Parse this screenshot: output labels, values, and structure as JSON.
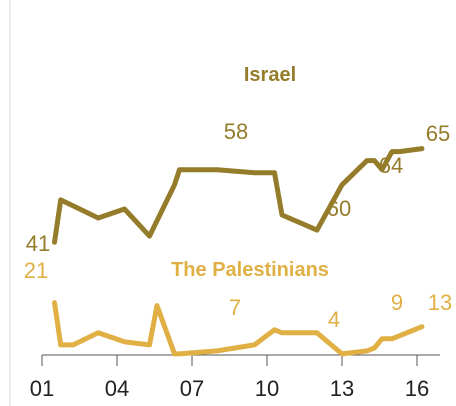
{
  "chart_data": {
    "type": "line",
    "title": "",
    "xlabel": "",
    "ylabel": "",
    "x_tick_labels": [
      "01",
      "04",
      "07",
      "10",
      "13",
      "16"
    ],
    "x_tick_years": [
      2001,
      2004,
      2007,
      2010,
      2013,
      2016
    ],
    "xlim": [
      2001,
      2016.2
    ],
    "ylim": [
      0,
      100
    ],
    "grid": false,
    "legend": "inline labels",
    "series": [
      {
        "name": "Israel",
        "color": "#947c2b",
        "points": [
          {
            "x": 2001.5,
            "y": 41
          },
          {
            "x": 2001.75,
            "y": 55
          },
          {
            "x": 2002.25,
            "y": 53
          },
          {
            "x": 2003.25,
            "y": 49
          },
          {
            "x": 2004.3,
            "y": 52
          },
          {
            "x": 2005.3,
            "y": 43
          },
          {
            "x": 2006.3,
            "y": 60
          },
          {
            "x": 2006.5,
            "y": 65
          },
          {
            "x": 2008.0,
            "y": 65
          },
          {
            "x": 2009.5,
            "y": 64
          },
          {
            "x": 2010.3,
            "y": 64
          },
          {
            "x": 2010.6,
            "y": 50
          },
          {
            "x": 2012.0,
            "y": 45
          },
          {
            "x": 2013.0,
            "y": 60
          },
          {
            "x": 2014.0,
            "y": 68
          },
          {
            "x": 2014.3,
            "y": 68
          },
          {
            "x": 2014.6,
            "y": 65
          },
          {
            "x": 2015.0,
            "y": 71
          },
          {
            "x": 2015.3,
            "y": 71
          },
          {
            "x": 2016.2,
            "y": 72
          }
        ]
      },
      {
        "name": "The Palestinians",
        "color": "#e0b044",
        "points": [
          {
            "x": 2001.5,
            "y": 21
          },
          {
            "x": 2001.75,
            "y": 7
          },
          {
            "x": 2002.25,
            "y": 7
          },
          {
            "x": 2003.25,
            "y": 11
          },
          {
            "x": 2004.3,
            "y": 8
          },
          {
            "x": 2005.3,
            "y": 7
          },
          {
            "x": 2005.6,
            "y": 20
          },
          {
            "x": 2006.3,
            "y": 4
          },
          {
            "x": 2006.5,
            "y": 4
          },
          {
            "x": 2008.0,
            "y": 5
          },
          {
            "x": 2009.5,
            "y": 7
          },
          {
            "x": 2010.3,
            "y": 12
          },
          {
            "x": 2010.6,
            "y": 11
          },
          {
            "x": 2012.0,
            "y": 11
          },
          {
            "x": 2013.0,
            "y": 4
          },
          {
            "x": 2014.0,
            "y": 5
          },
          {
            "x": 2014.3,
            "y": 6
          },
          {
            "x": 2014.6,
            "y": 9
          },
          {
            "x": 2015.0,
            "y": 9
          },
          {
            "x": 2016.2,
            "y": 13
          }
        ]
      }
    ],
    "series_labels": [
      "Israel",
      "The Palestinians"
    ],
    "data_labels": [
      {
        "series": 0,
        "text": "41"
      },
      {
        "series": 0,
        "text": "58"
      },
      {
        "series": 0,
        "text": "60"
      },
      {
        "series": 0,
        "text": "64"
      },
      {
        "series": 0,
        "text": "65"
      },
      {
        "series": 1,
        "text": "21"
      },
      {
        "series": 1,
        "text": "7"
      },
      {
        "series": 1,
        "text": "4"
      },
      {
        "series": 1,
        "text": "9"
      },
      {
        "series": 1,
        "text": "13"
      }
    ]
  }
}
